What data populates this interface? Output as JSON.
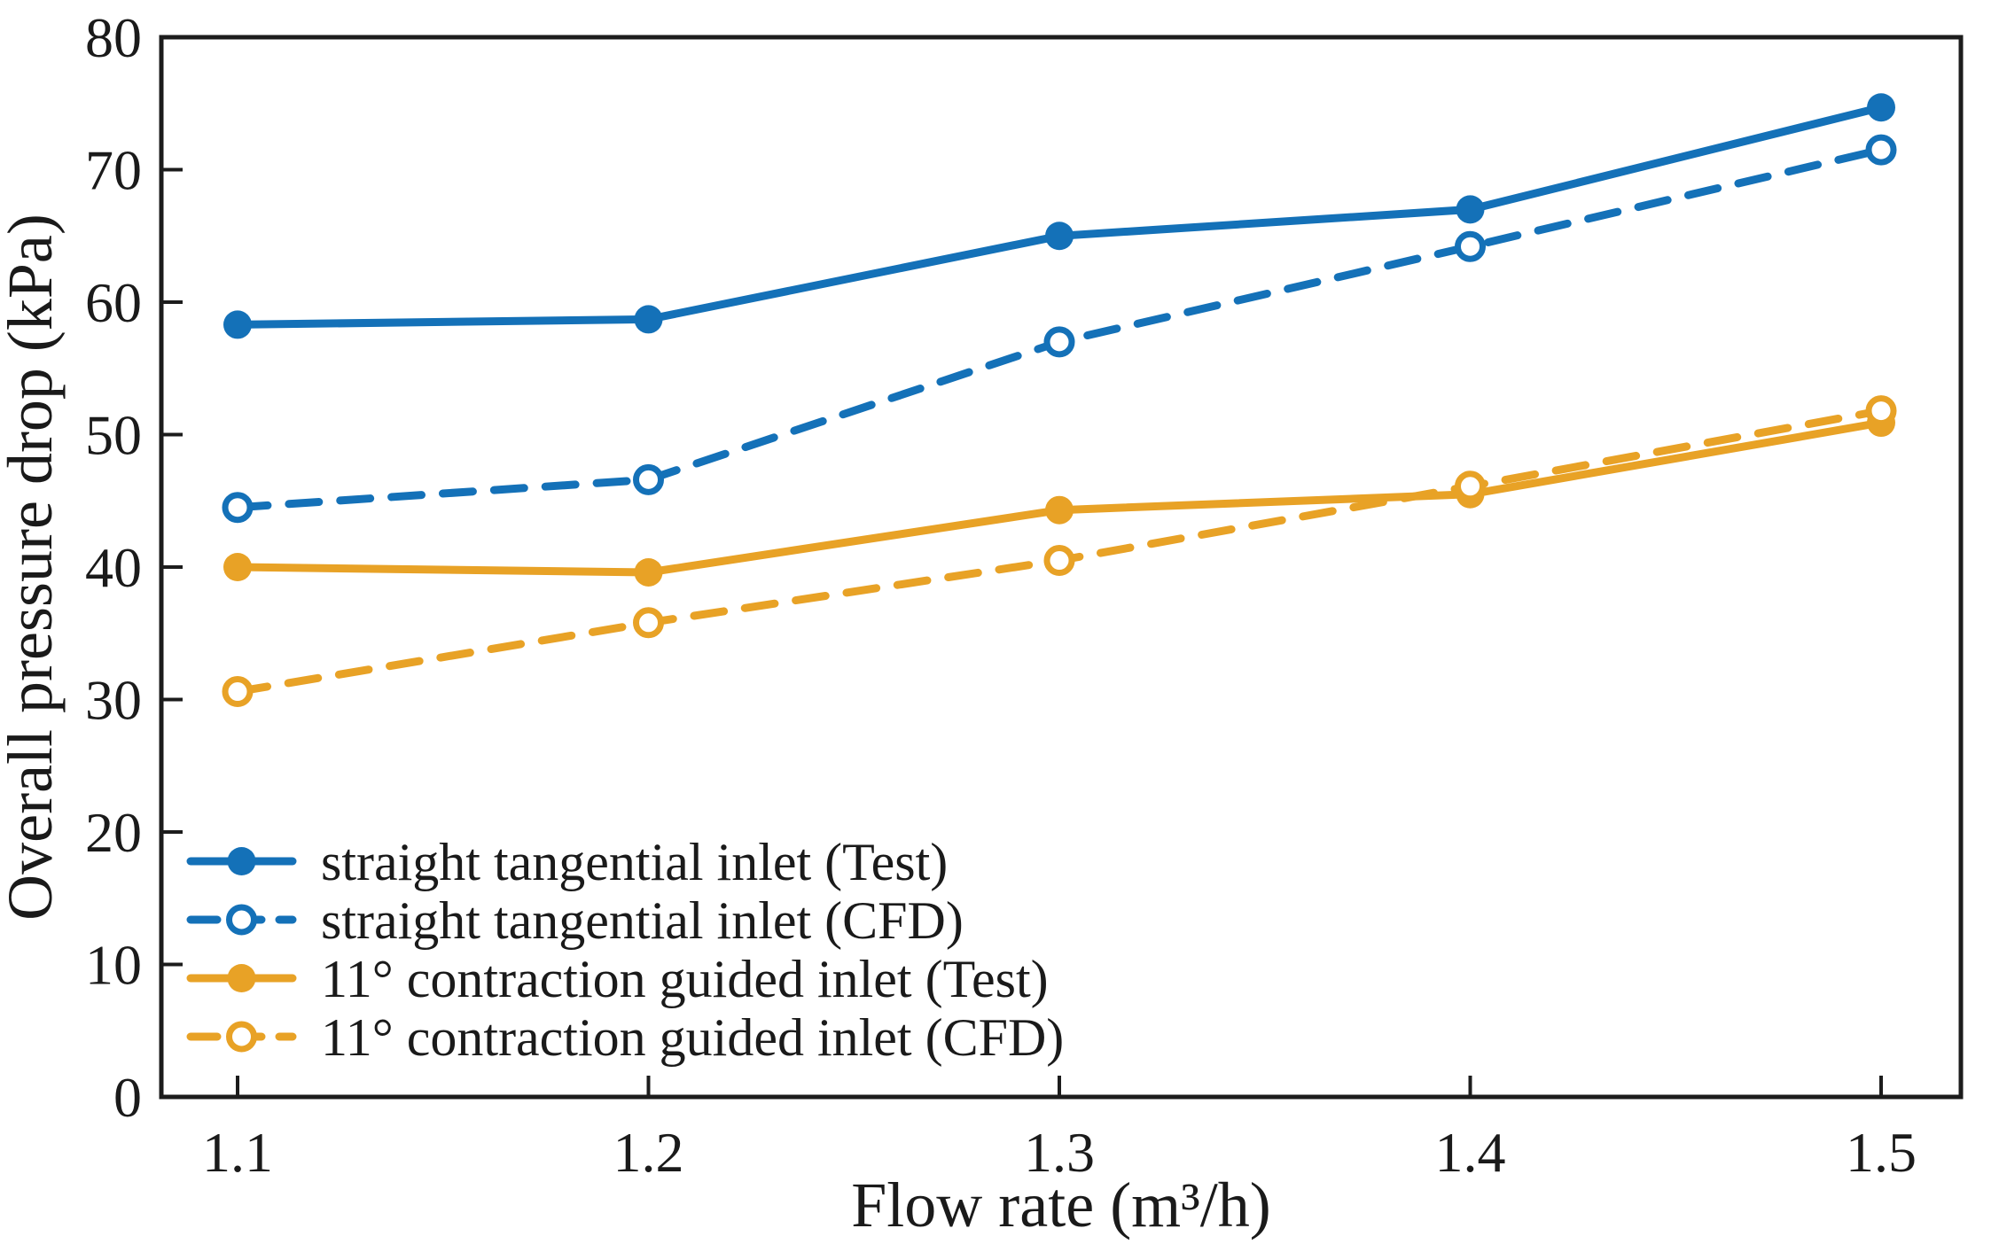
{
  "figure": {
    "xlabel": "Flow rate (m³/h)",
    "ylabel": "Overall pressure drop (kPa)"
  },
  "colors": {
    "axis": "#1c1c1c",
    "background": "#ffffff",
    "blue": "#1471B8",
    "orange": "#E8A226"
  },
  "chart_data": {
    "type": "line",
    "title": "",
    "xlabel": "Flow rate (m³/h)",
    "ylabel": "Overall pressure drop (kPa)",
    "x": [
      1.1,
      1.2,
      1.3,
      1.4,
      1.5
    ],
    "x_tick_labels": [
      "1.1",
      "1.2",
      "1.3",
      "1.4",
      "1.5"
    ],
    "y_ticks": [
      0,
      10,
      20,
      30,
      40,
      50,
      60,
      70,
      80
    ],
    "y_tick_labels": [
      "0",
      "10",
      "20",
      "30",
      "40",
      "50",
      "60",
      "70",
      "80"
    ],
    "xlim": [
      1.081,
      1.519
    ],
    "ylim": [
      0,
      80
    ],
    "grid": false,
    "legend_position": "lower-left",
    "series": [
      {
        "name": "straight tangential inlet (Test)",
        "color": "#1471B8",
        "line": "solid",
        "marker": "filled-circle",
        "values": [
          58.3,
          58.7,
          65.0,
          67.0,
          74.7
        ]
      },
      {
        "name": "straight tangential inlet (CFD)",
        "color": "#1471B8",
        "line": "dashed",
        "marker": "open-circle",
        "values": [
          44.5,
          46.6,
          57.0,
          64.2,
          71.5
        ]
      },
      {
        "name": "11° contraction guided inlet (Test)",
        "color": "#E8A226",
        "line": "solid",
        "marker": "filled-circle",
        "values": [
          40.0,
          39.6,
          44.3,
          45.5,
          50.9
        ]
      },
      {
        "name": "11° contraction guided inlet (CFD)",
        "color": "#E8A226",
        "line": "dashed",
        "marker": "open-circle",
        "values": [
          30.6,
          35.8,
          40.5,
          46.1,
          51.8
        ]
      }
    ]
  }
}
